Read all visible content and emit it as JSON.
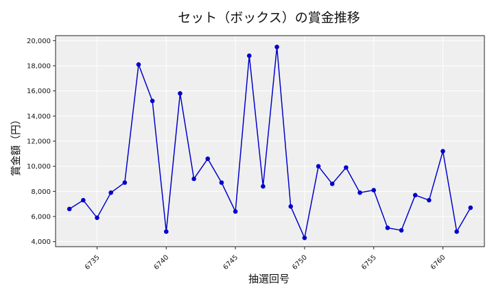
{
  "chart_data": {
    "type": "line",
    "title": "セット（ボックス）の賞金推移",
    "xlabel": "抽選回号",
    "ylabel": "賞金額（円）",
    "xlim": [
      6732,
      6763
    ],
    "ylim": [
      3600,
      20400
    ],
    "x_ticks": [
      "6735",
      "6740",
      "6745",
      "6750",
      "6755",
      "6760"
    ],
    "y_ticks": [
      "4,000",
      "6,000",
      "8,000",
      "10,000",
      "12,000",
      "14,000",
      "16,000",
      "18,000",
      "20,000"
    ],
    "grid": true,
    "legend": "none",
    "line_color": "#0000cc",
    "marker_color": "#0000cc",
    "plot_background": "#efefef",
    "series": [
      {
        "x": [
          6733,
          6734,
          6735,
          6736,
          6737,
          6738,
          6739,
          6740,
          6741,
          6742,
          6743,
          6744,
          6745,
          6746,
          6747,
          6748,
          6749,
          6750,
          6751,
          6752,
          6753,
          6754,
          6755,
          6756,
          6757,
          6758,
          6759,
          6760,
          6761,
          6762
        ],
        "values": [
          6600,
          7300,
          5900,
          7900,
          8700,
          18100,
          15200,
          4800,
          15800,
          9000,
          10600,
          8700,
          6400,
          18800,
          8400,
          19500,
          6800,
          4300,
          10000,
          8600,
          9900,
          7900,
          8100,
          5100,
          4900,
          7700,
          7300,
          11200,
          4800,
          6700
        ]
      }
    ]
  }
}
